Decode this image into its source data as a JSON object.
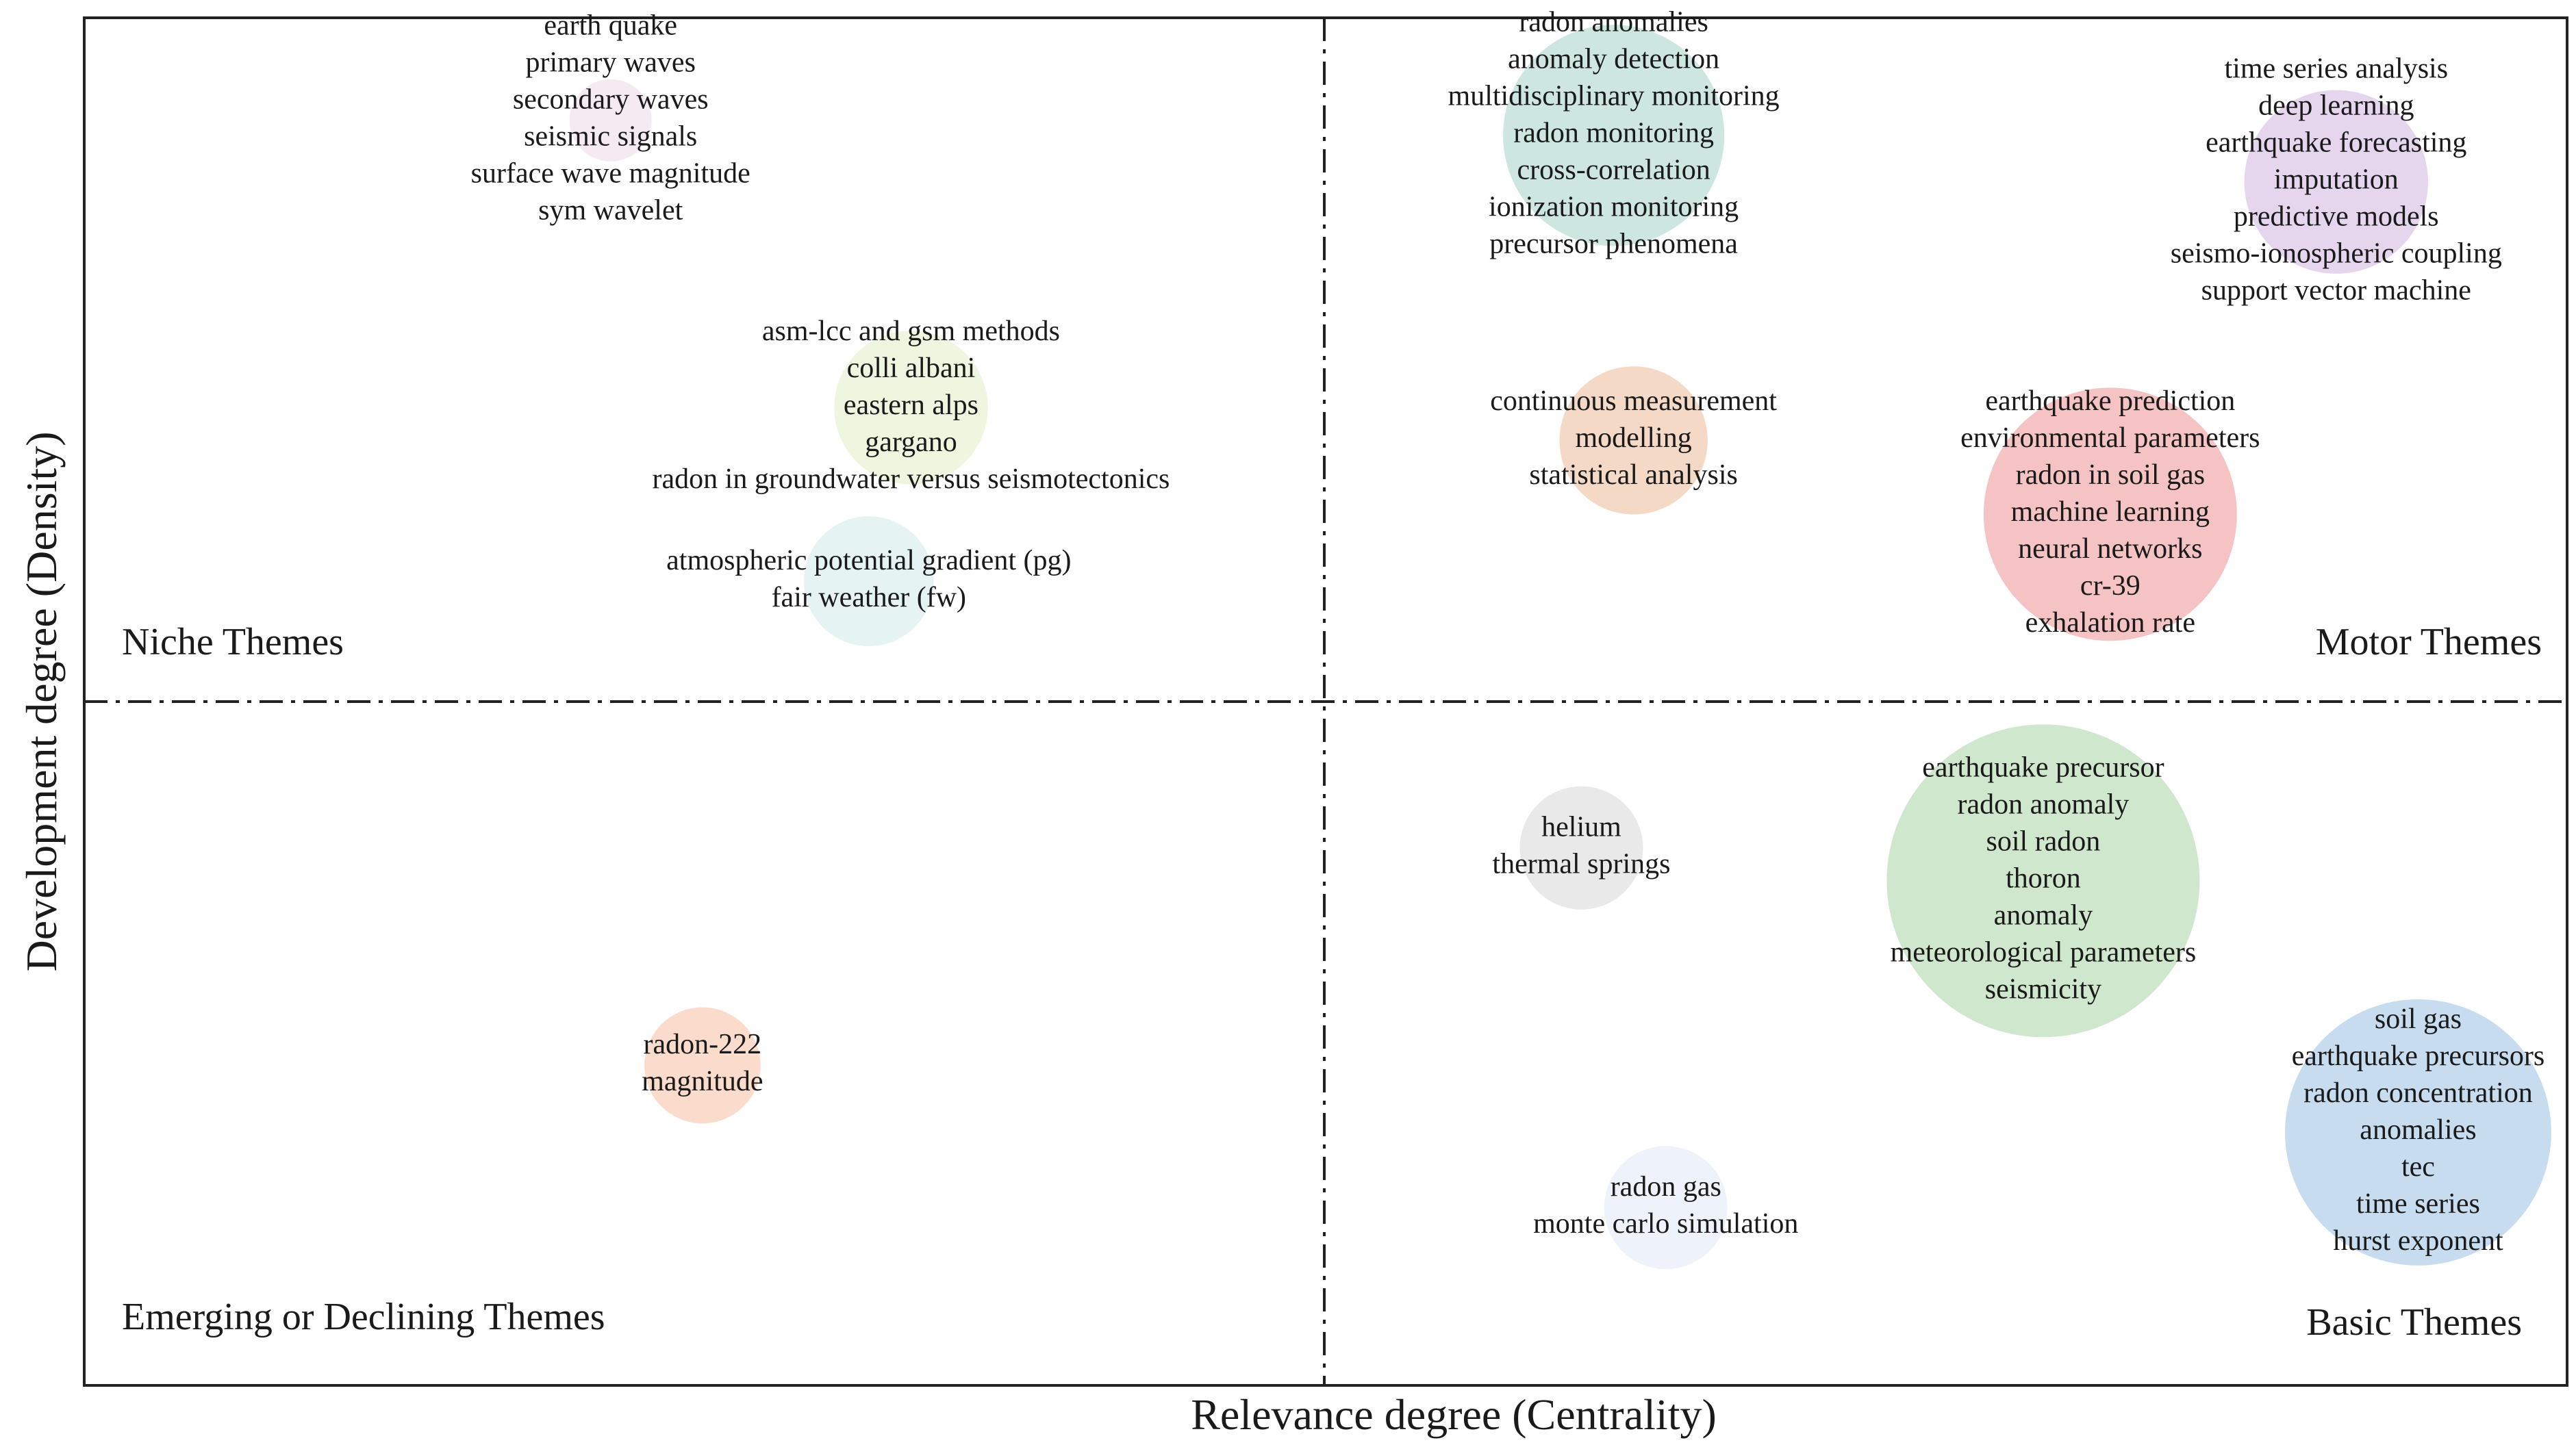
{
  "chart_data": {
    "type": "scatter",
    "subtype": "strategic-diagram",
    "xlabel": "Relevance degree (Centrality)",
    "ylabel": "Development degree (Density)",
    "quadrants": {
      "top_left": "Niche Themes",
      "top_right": "Motor Themes",
      "bottom_left": "Emerging or Declining Themes",
      "bottom_right": "Basic Themes"
    },
    "xlim": [
      0,
      100
    ],
    "ylim": [
      0,
      100
    ],
    "divider_x": 50.9,
    "divider_y": 50,
    "clusters": [
      {
        "id": "seismic",
        "x": 21.2,
        "y": 92.5,
        "size": 4,
        "color": "#f6eaf2",
        "keywords": [
          "earth quake",
          "primary waves",
          "secondary waves",
          "seismic signals",
          "surface wave magnitude",
          "sym wavelet"
        ]
      },
      {
        "id": "italy-sites",
        "x": 33.3,
        "y": 71.5,
        "size": 14,
        "color": "#eef6df",
        "keywords": [
          "asm-lcc and gsm methods",
          "colli albani",
          "eastern alps",
          "gargano",
          "radon in groundwater versus seismotectonics"
        ]
      },
      {
        "id": "atmospheric",
        "x": 31.6,
        "y": 58.8,
        "size": 10,
        "color": "#e5f3f2",
        "keywords": [
          "atmospheric potential gradient (pg)",
          "fair weather (fw)"
        ]
      },
      {
        "id": "radon-anomalies",
        "x": 61.6,
        "y": 91.4,
        "size": 29,
        "color": "#cde6df",
        "keywords": [
          "radon anomalies",
          "anomaly detection",
          "multidisciplinary monitoring",
          "radon monitoring",
          "cross-correlation",
          "ionization monitoring",
          "precursor phenomena"
        ]
      },
      {
        "id": "time-series",
        "x": 90.7,
        "y": 88.0,
        "size": 20,
        "color": "#e5d6ee",
        "keywords": [
          "time series analysis",
          "deep learning",
          "earthquake forecasting",
          "imputation",
          "predictive models",
          "seismo-ionospheric coupling",
          "support vector machine"
        ]
      },
      {
        "id": "continuous",
        "x": 62.4,
        "y": 69.1,
        "size": 13,
        "color": "#f4d9c7",
        "keywords": [
          "continuous measurement",
          "modelling",
          "statistical analysis"
        ]
      },
      {
        "id": "prediction",
        "x": 81.6,
        "y": 63.7,
        "size": 38,
        "color": "#f5c3c3",
        "keywords": [
          "earthquake prediction",
          "environmental parameters",
          "radon in soil gas",
          "machine learning",
          "neural networks",
          "cr-39",
          "exhalation rate"
        ]
      },
      {
        "id": "helium",
        "x": 60.3,
        "y": 39.3,
        "size": 9,
        "color": "#e9e9e9",
        "keywords": [
          "helium",
          "thermal springs"
        ]
      },
      {
        "id": "precursor",
        "x": 78.9,
        "y": 36.9,
        "size": 58,
        "color": "#cfe7cc",
        "keywords": [
          "earthquake precursor",
          "radon anomaly",
          "soil radon",
          "thoron",
          "anomaly",
          "meteorological parameters",
          "seismicity"
        ]
      },
      {
        "id": "soil-gas",
        "x": 94.0,
        "y": 18.5,
        "size": 42,
        "color": "#c7dcee",
        "keywords": [
          "soil gas",
          "earthquake precursors",
          "radon concentration",
          "anomalies",
          "tec",
          "time series",
          "hurst exponent"
        ]
      },
      {
        "id": "radon-gas",
        "x": 63.7,
        "y": 13.0,
        "size": 9,
        "color": "#eef2fa",
        "keywords": [
          "radon gas",
          "monte carlo simulation"
        ]
      },
      {
        "id": "radon-222",
        "x": 24.9,
        "y": 23.4,
        "size": 8,
        "color": "#fbdccc",
        "keywords": [
          "radon-222",
          "magnitude"
        ]
      }
    ]
  }
}
